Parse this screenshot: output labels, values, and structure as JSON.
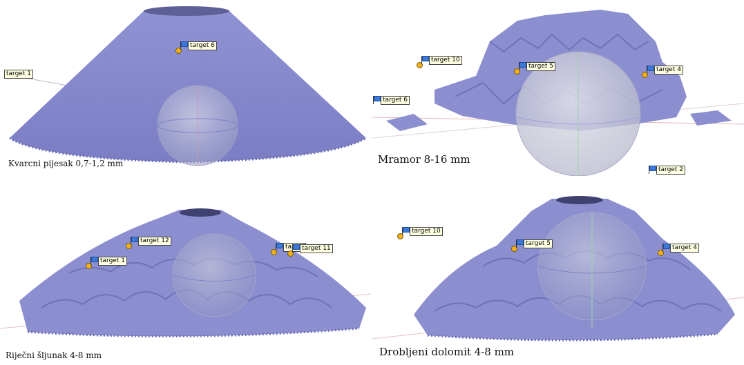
{
  "panels": [
    {
      "caption": "Kvarcni pijesak 0,7-1,2 mm",
      "targets": [
        "target 1",
        "target 6"
      ]
    },
    {
      "caption": "Mramor 8-16 mm",
      "targets": [
        "target 10",
        "target 5",
        "target 4",
        "target 6",
        "target 2"
      ]
    },
    {
      "caption": "Riječni šljunak 4-8 mm",
      "targets": [
        "target 12",
        "target 1",
        "target",
        "target 11"
      ]
    },
    {
      "caption": "Drobljeni dolomit 4-8 mm",
      "targets": [
        "target 10",
        "target 5",
        "target 4"
      ]
    }
  ],
  "colors": {
    "surface": "#8c8fcf",
    "surface_dark": "#6f72b8",
    "sphere": "#c8c8d4",
    "label_bg": "#ffffe1"
  }
}
